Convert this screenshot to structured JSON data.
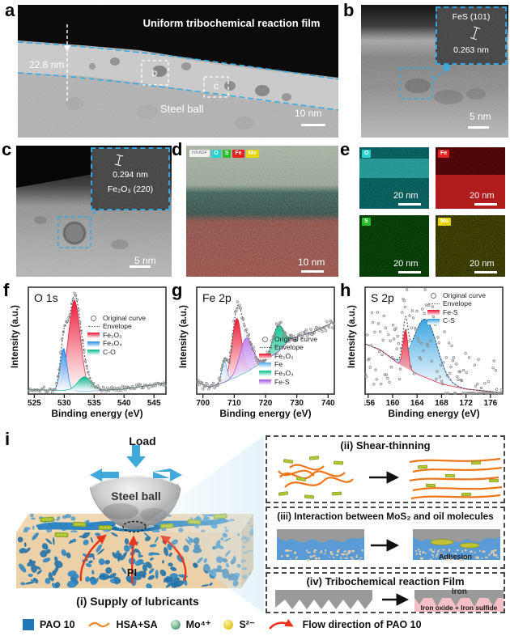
{
  "panel_labels": {
    "a": "a",
    "b": "b",
    "c": "c",
    "d": "d",
    "e": "e",
    "f": "f",
    "g": "g",
    "h": "h",
    "i": "i"
  },
  "panel_a": {
    "film_label": "Uniform tribochemical reaction film",
    "thickness": "22.8 nm",
    "box_b_label": "b",
    "box_c_label": "c",
    "substrate_label": "Steel ball",
    "scale_bar": "10 nm"
  },
  "panel_b": {
    "inset_phase": "FeS (101)",
    "inset_spacing": "0.263 nm",
    "scale_bar": "5 nm"
  },
  "panel_c": {
    "inset_spacing": "0.294 nm",
    "inset_phase": "Fe₂O₃ (220)",
    "scale_bar": "5 nm"
  },
  "panel_d": {
    "legend_chips": [
      {
        "label": "HAADF",
        "color": "#f2f2f2",
        "text_color": "#999999"
      },
      {
        "label": "O",
        "color": "#29d3d3",
        "text_color": "#ffffff"
      },
      {
        "label": "S",
        "color": "#27c127",
        "text_color": "#ffffff"
      },
      {
        "label": "Fe",
        "color": "#e32222",
        "text_color": "#ffffff"
      },
      {
        "label": "Mo",
        "color": "#e8d400",
        "text_color": "#ffffff"
      }
    ],
    "scale_bar": "10 nm"
  },
  "panel_e": {
    "maps": [
      {
        "label": "O",
        "chip_color": "#29d3d3",
        "scale_bar": "20 nm"
      },
      {
        "label": "Fe",
        "chip_color": "#e32222",
        "scale_bar": "20 nm"
      },
      {
        "label": "S",
        "chip_color": "#27c127",
        "scale_bar": "20 nm"
      },
      {
        "label": "Mo",
        "chip_color": "#e8d400",
        "scale_bar": "20 nm"
      }
    ]
  },
  "chart_data": [
    {
      "type": "line",
      "panel": "f",
      "title": "O 1s",
      "xlabel": "Binding energy (eV)",
      "ylabel": "Intensity (a.u.)",
      "xlim": [
        524,
        547
      ],
      "xticks": [
        525,
        530,
        535,
        540,
        545
      ],
      "legend": [
        "Original curve",
        "Envelope",
        "Fe₂O₃",
        "Fe₃O₄",
        "C-O"
      ],
      "legend_pos": "right-mid",
      "baseline": [
        [
          524,
          0.045
        ],
        [
          534,
          0.03
        ],
        [
          540,
          0.05
        ],
        [
          547,
          0.11
        ]
      ],
      "peaks": [
        {
          "name": "Fe₂O₃",
          "color": "#e8112d",
          "center": 531.7,
          "sigma": 1.0,
          "height": 0.9
        },
        {
          "name": "Fe₃O₄",
          "color": "#2288ee",
          "center": 529.9,
          "sigma": 0.55,
          "height": 0.42
        },
        {
          "name": "C-O",
          "color": "#00b389",
          "center": 533.4,
          "sigma": 1.15,
          "height": 0.14
        }
      ],
      "noise": 0.018,
      "points": 100,
      "seed": 7
    },
    {
      "type": "line",
      "panel": "g",
      "title": "Fe 2p",
      "xlabel": "Binding energy (eV)",
      "ylabel": "Intensity (a.u.)",
      "xlim": [
        698,
        742
      ],
      "xticks": [
        700,
        710,
        720,
        730,
        740
      ],
      "legend": [
        "Original curve",
        "Envelope",
        "Fe₂O₃",
        "Fe",
        "Fe₃O₄",
        "Fe-S"
      ],
      "legend_pos": "right-low",
      "baseline": [
        [
          698,
          0.12
        ],
        [
          702,
          0.07
        ],
        [
          707,
          0.12
        ],
        [
          714,
          0.22
        ],
        [
          718,
          0.3
        ],
        [
          724,
          0.42
        ],
        [
          728,
          0.55
        ],
        [
          736,
          0.63
        ],
        [
          742,
          0.72
        ]
      ],
      "peaks": [
        {
          "name": "Fe₂O₃",
          "color": "#e8112d",
          "center": 710.8,
          "sigma": 1.5,
          "height": 0.58
        },
        {
          "name": "Fe",
          "color": "#55aaee",
          "center": 706.8,
          "sigma": 0.8,
          "height": 0.22
        },
        {
          "name": "Fe₃O₄",
          "color": "#00c08b",
          "center": 724.0,
          "sigma": 1.7,
          "height": 0.26
        },
        {
          "name": "Fe-S",
          "color": "#a050e0",
          "center": 713.8,
          "sigma": 2.0,
          "height": 0.34
        }
      ],
      "noise": 0.03,
      "points": 120,
      "seed": 11
    },
    {
      "type": "line",
      "panel": "h",
      "title": "S 2p",
      "xlabel": "Binding energy (eV)",
      "ylabel": "Intensity (a.u.)",
      "xlim": [
        155.5,
        178
      ],
      "xticks": [
        156,
        160,
        164,
        168,
        172,
        176
      ],
      "legend": [
        "Original curve",
        "Envelope",
        "Fe-S",
        "C-S"
      ],
      "legend_pos": "top-right",
      "baseline": [
        [
          155.5,
          0.5
        ],
        [
          158,
          0.44
        ],
        [
          161,
          0.3
        ],
        [
          164,
          0.2
        ],
        [
          168,
          0.1
        ],
        [
          172,
          0.05
        ],
        [
          178,
          0.012
        ]
      ],
      "peaks": [
        {
          "name": "C-S",
          "color": "#2e9fe0",
          "center": 165.4,
          "sigma": 1.9,
          "height": 0.58
        },
        {
          "name": "Fe-S",
          "color": "#e8112d",
          "center": 162.1,
          "sigma": 0.4,
          "height": 0.38
        }
      ],
      "noise": 0.17,
      "points": 150,
      "seed": 23
    }
  ],
  "schematic": {
    "load_label": "Load",
    "ball_label": "Steel ball",
    "pi_label": "PI",
    "caption": "(i) Supply of lubricants",
    "box_ii_title": "(ii)  Shear-thinning",
    "box_iii_title": "(iii)  Interaction between MoS₂ and oil molecules",
    "box_iv_title": "(iv) Tribochemical reaction Film",
    "adhesion_label": "Adhesion",
    "iron_label": "Iron",
    "iron_oxide_label": "Iron oxide + Iron sulfide"
  },
  "bottom_legend": {
    "items": [
      {
        "icon": "blue-square",
        "label": "PAO 10"
      },
      {
        "icon": "orange-wave",
        "label": "HSA+SA"
      },
      {
        "icon": "green-sphere",
        "label": "Mo⁴⁺"
      },
      {
        "icon": "yellow-sphere",
        "label": "S²⁻"
      },
      {
        "icon": "red-arrow",
        "label": "Flow direction of PAO 10"
      }
    ]
  }
}
